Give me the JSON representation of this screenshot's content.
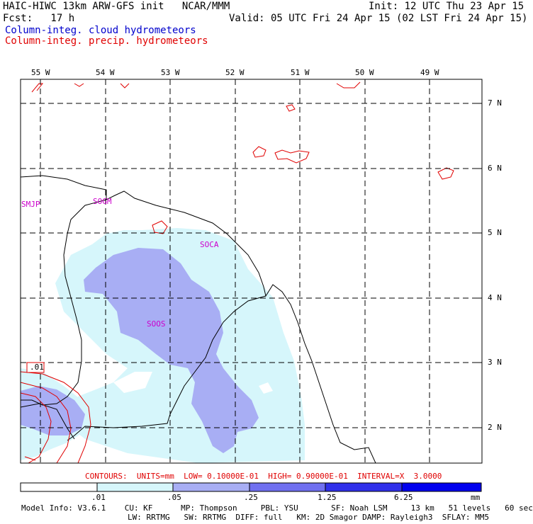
{
  "header": {
    "title_left": "HAIC-HIWC 13km ARW-GFS init   NCAR/MMM",
    "init": "Init: 12 UTC Thu 23 Apr 15",
    "fcst": "Fcst:   17 h",
    "valid": "Valid: 05 UTC Fri 24 Apr 15 (02 LST Fri 24 Apr 15)",
    "legend_cloud": "Column-integ. cloud hydrometeors",
    "legend_precip": "Column-integ. precip. hydrometeors"
  },
  "map": {
    "lon_labels": [
      "55 W",
      "54 W",
      "53 W",
      "52 W",
      "51 W",
      "50 W",
      "49 W"
    ],
    "lat_labels": [
      "7 N",
      "6 N",
      "5 N",
      "4 N",
      "3 N",
      "2 N"
    ],
    "stations": [
      "SMJP",
      "SOGM",
      "SOCA",
      "SOOS"
    ],
    "contour_label": ".01",
    "colors": {
      "cloud_light": "#d6f6fb",
      "cloud_medium": "#a8aef4",
      "precip_contour": "#e00000",
      "station": "#cc00cc",
      "grid": "#000000"
    }
  },
  "footer": {
    "contours_line": "CONTOURS:  UNITS=mm  LOW= 0.10000E-01  HIGH= 0.90000E-01  INTERVAL=X  3.0000",
    "colorbar": {
      "ticks": [
        ".01",
        ".05",
        ".25",
        "1.25",
        "6.25"
      ],
      "unit": "mm",
      "colors": [
        "#ffffff",
        "#d6f6fb",
        "#a8aef4",
        "#7070f0",
        "#3030ea",
        "#0000ee"
      ]
    },
    "model_info_1": "Model Info: V3.6.1    CU: KF      MP: Thompson     PBL: YSU       SF: Noah LSM     13 km   51 levels   60 sec",
    "model_info_2": "LW: RRTMG   SW: RRTMG  DIFF: full   KM: 2D Smagor DAMP: Rayleigh3  SFLAY: MM5"
  }
}
